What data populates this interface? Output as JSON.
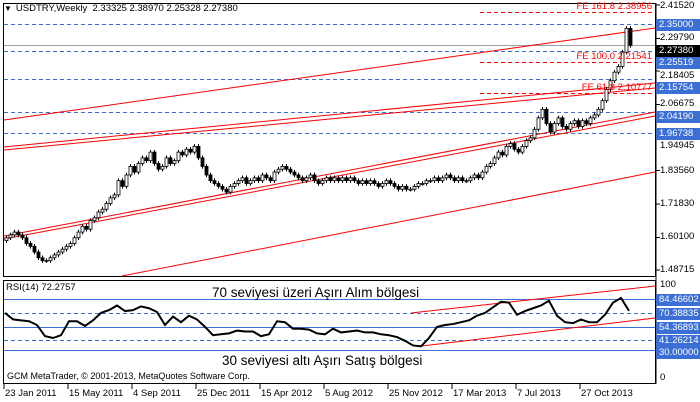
{
  "header": {
    "symbol_timeframe": "USDTRY,Weekly",
    "ohlc": "2.33325 2.38970 2.25328 2.27380",
    "menu_icon": "triangle-down-icon"
  },
  "price_axis": {
    "ticks": [
      "2.41520",
      "2.29790",
      "2.18405",
      "2.06675",
      "1.94945",
      "1.83560",
      "1.71830",
      "1.60100",
      "1.48715"
    ],
    "level_labels": [
      {
        "text": "2.35000",
        "value": 2.35,
        "style": "blue"
      },
      {
        "text": "2.27380",
        "value": 2.2738,
        "style": "black"
      },
      {
        "text": "2.25519",
        "value": 2.25519,
        "style": "blue"
      },
      {
        "text": "2.15754",
        "value": 2.15754,
        "style": "blue"
      },
      {
        "text": "2.04190",
        "value": 2.0419,
        "style": "blue"
      },
      {
        "text": "1.96738",
        "value": 1.96738,
        "style": "blue"
      }
    ]
  },
  "fibo_labels": [
    {
      "text": "FE 161.8 2.38956",
      "value": 2.38956
    },
    {
      "text": "FE 100.0 2.21541",
      "value": 2.21541
    },
    {
      "text": "FE 61.8 2.10777",
      "value": 2.10777
    }
  ],
  "rsi": {
    "title": "RSI(14) 72.2757",
    "axis_ticks": [
      "100",
      "0"
    ],
    "level_labels": [
      {
        "text": "84.46602",
        "value": 84.46602,
        "style": "solid"
      },
      {
        "text": "70.38835",
        "value": 70.38835,
        "style": "dashed"
      },
      {
        "text": "54.36893",
        "value": 54.36893,
        "style": "solid"
      },
      {
        "text": "41.26214",
        "value": 41.26214,
        "style": "dashed"
      },
      {
        "text": "30.00000",
        "value": 30.0,
        "style": "solid"
      }
    ],
    "overbought_note": "70 seviyesi üzeri Aşırı Alım bölgesi",
    "oversold_note": "30 seviyesi altı Aşırı Satış bölgesi"
  },
  "copyright": "GCM MetaTrader, © 2001-2013, MetaQuotes Software Corp.",
  "date_axis": [
    "23 Jan 2011",
    "15 May 2011",
    "4 Sep 2011",
    "25 Dec 2011",
    "15 Apr 2012",
    "5 Aug 2012",
    "25 Nov 2012",
    "17 Mar 2013",
    "7 Jul 2013",
    "27 Oct 2013"
  ],
  "colors": {
    "level_blue": "#3c6fd6",
    "trendline_red": "#ff0000",
    "candle": "#000000",
    "rsi_line": "#000000"
  },
  "chart_data": {
    "type": "candlestick",
    "price_range": [
      1.48715,
      2.4152
    ],
    "rsi_range": [
      0,
      100
    ],
    "weekly_closes": [
      1.6,
      1.61,
      1.62,
      1.61,
      1.6,
      1.58,
      1.57,
      1.55,
      1.53,
      1.52,
      1.52,
      1.53,
      1.54,
      1.55,
      1.56,
      1.57,
      1.58,
      1.6,
      1.62,
      1.64,
      1.63,
      1.66,
      1.67,
      1.69,
      1.7,
      1.72,
      1.74,
      1.75,
      1.8,
      1.78,
      1.82,
      1.85,
      1.83,
      1.86,
      1.88,
      1.87,
      1.9,
      1.86,
      1.84,
      1.85,
      1.88,
      1.86,
      1.87,
      1.9,
      1.89,
      1.91,
      1.9,
      1.92,
      1.88,
      1.85,
      1.82,
      1.8,
      1.79,
      1.78,
      1.77,
      1.76,
      1.78,
      1.79,
      1.8,
      1.81,
      1.79,
      1.8,
      1.81,
      1.8,
      1.82,
      1.81,
      1.8,
      1.83,
      1.84,
      1.85,
      1.84,
      1.83,
      1.82,
      1.81,
      1.8,
      1.81,
      1.82,
      1.8,
      1.79,
      1.8,
      1.81,
      1.8,
      1.81,
      1.8,
      1.81,
      1.8,
      1.81,
      1.8,
      1.79,
      1.8,
      1.79,
      1.8,
      1.79,
      1.78,
      1.79,
      1.8,
      1.79,
      1.78,
      1.77,
      1.78,
      1.77,
      1.77,
      1.78,
      1.79,
      1.79,
      1.8,
      1.8,
      1.81,
      1.8,
      1.81,
      1.82,
      1.81,
      1.8,
      1.81,
      1.8,
      1.8,
      1.81,
      1.82,
      1.81,
      1.83,
      1.85,
      1.86,
      1.88,
      1.9,
      1.89,
      1.92,
      1.93,
      1.91,
      1.9,
      1.92,
      1.94,
      1.95,
      1.98,
      2.02,
      2.05,
      2.0,
      1.97,
      2.0,
      2.02,
      1.99,
      1.98,
      2.0,
      2.01,
      1.99,
      2.01,
      2.0,
      2.02,
      2.03,
      2.05,
      2.08,
      2.12,
      2.15,
      2.18,
      2.2,
      2.25,
      2.33325,
      2.2738
    ],
    "rsi_biweekly": [
      70,
      63,
      62,
      61,
      57,
      45,
      43,
      46,
      61,
      61,
      56,
      62,
      70,
      73,
      78,
      72,
      73,
      77,
      75,
      71,
      57,
      66,
      60,
      67,
      63,
      55,
      46,
      47,
      48,
      51,
      50,
      50,
      45,
      47,
      61,
      60,
      53,
      53,
      52,
      48,
      47,
      53,
      49,
      50,
      51,
      49,
      49,
      47,
      46,
      44,
      40,
      35,
      34,
      43,
      55,
      57,
      58,
      60,
      62,
      67,
      70,
      76,
      82,
      81,
      68,
      72,
      75,
      78,
      83,
      67,
      60,
      59,
      63,
      60,
      60,
      68,
      81,
      86,
      72.2757
    ]
  }
}
